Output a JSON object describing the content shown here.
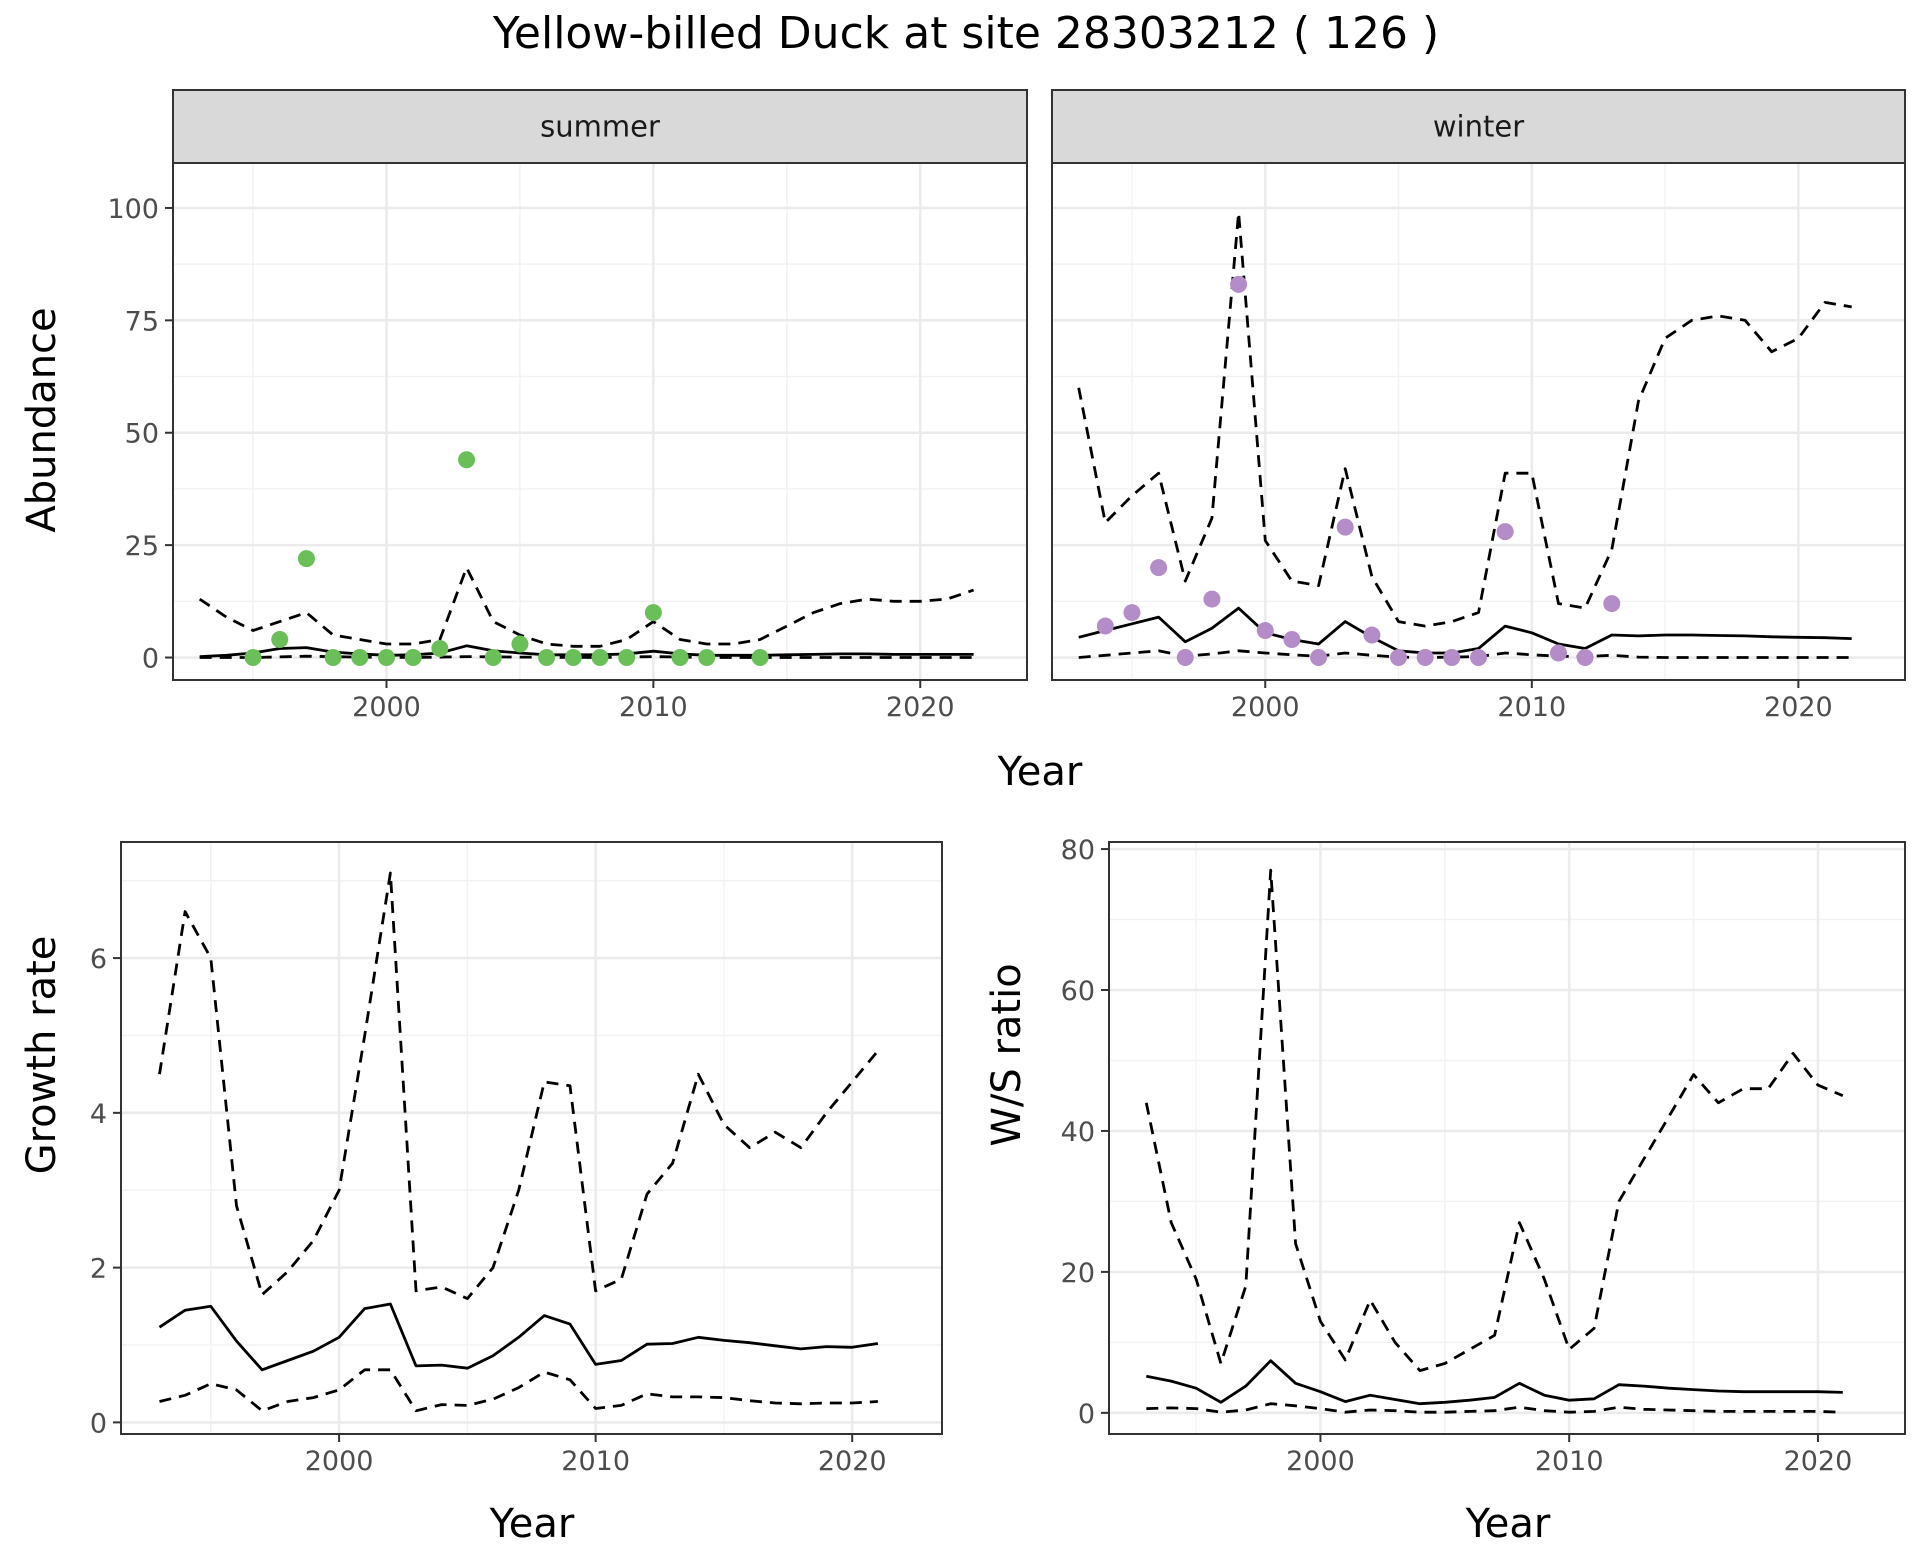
{
  "title": "Yellow-billed Duck at site 28303212 ( 126 )",
  "colors": {
    "summer_points": "#6bbf59",
    "winter_points": "#b48cc8",
    "line": "#000000",
    "strip_bg": "#d9d9d9",
    "grid_major": "#ebebeb",
    "grid_minor": "#f2f2f2"
  },
  "chart_data": [
    {
      "type": "line",
      "facet": "summer",
      "xlabel": "Year",
      "ylabel": "Abundance",
      "xlim": [
        1992,
        2024
      ],
      "ylim": [
        -5,
        110
      ],
      "xticks": [
        2000,
        2010,
        2020
      ],
      "yticks": [
        0,
        25,
        50,
        75,
        100
      ],
      "grid": true,
      "series": [
        {
          "style": "solid",
          "x": [
            1993,
            1994,
            1995,
            1996,
            1997,
            1998,
            1999,
            2000,
            2001,
            2002,
            2003,
            2004,
            2005,
            2006,
            2007,
            2008,
            2009,
            2010,
            2011,
            2012,
            2013,
            2014,
            2015,
            2016,
            2017,
            2018,
            2019,
            2020,
            2021,
            2022
          ],
          "y": [
            0.2,
            0.5,
            1.0,
            2.0,
            2.2,
            1.2,
            0.8,
            0.5,
            0.6,
            1.0,
            2.6,
            1.5,
            1.0,
            0.6,
            0.6,
            0.6,
            0.8,
            1.4,
            0.8,
            0.5,
            0.5,
            0.5,
            0.6,
            0.7,
            0.8,
            0.8,
            0.7,
            0.7,
            0.7,
            0.7
          ]
        },
        {
          "style": "dashed",
          "x": [
            1993,
            1994,
            1995,
            1996,
            1997,
            1998,
            1999,
            2000,
            2001,
            2002,
            2003,
            2004,
            2005,
            2006,
            2007,
            2008,
            2009,
            2010,
            2011,
            2012,
            2013,
            2014,
            2015,
            2016,
            2017,
            2018,
            2019,
            2020,
            2021,
            2022
          ],
          "y": [
            13,
            9,
            6,
            8,
            10,
            5,
            4,
            3,
            3,
            4,
            20,
            8,
            5,
            3,
            2.5,
            2.5,
            4,
            8,
            4,
            3,
            3,
            4,
            7,
            10,
            12,
            13,
            12.5,
            12.5,
            13,
            15
          ]
        },
        {
          "style": "dashed",
          "x": [
            1993,
            1995,
            1997,
            1999,
            2001,
            2003,
            2005,
            2008,
            2010,
            2012,
            2014,
            2017,
            2020,
            2022
          ],
          "y": [
            0,
            0,
            0.3,
            0.1,
            0,
            0.2,
            0.1,
            0,
            0.2,
            0,
            0,
            0,
            0,
            0
          ]
        }
      ],
      "points": {
        "x": [
          1995,
          1996,
          1997,
          1998,
          1999,
          2000,
          2001,
          2002,
          2003,
          2004,
          2005,
          2006,
          2007,
          2008,
          2009,
          2010,
          2011,
          2012,
          2014
        ],
        "y": [
          0,
          4,
          22,
          0,
          0,
          0,
          0,
          2,
          44,
          0,
          3,
          0,
          0,
          0,
          0,
          10,
          0,
          0,
          0
        ]
      }
    },
    {
      "type": "line",
      "facet": "winter",
      "xlabel": "Year",
      "ylabel": "Abundance",
      "xlim": [
        1992,
        2024
      ],
      "ylim": [
        -5,
        110
      ],
      "xticks": [
        2000,
        2010,
        2020
      ],
      "yticks": [
        0,
        25,
        50,
        75,
        100
      ],
      "grid": true,
      "series": [
        {
          "style": "solid",
          "x": [
            1993,
            1994,
            1995,
            1996,
            1997,
            1998,
            1999,
            2000,
            2001,
            2002,
            2003,
            2004,
            2005,
            2006,
            2007,
            2008,
            2009,
            2010,
            2011,
            2012,
            2013,
            2014,
            2015,
            2016,
            2017,
            2018,
            2019,
            2020,
            2021,
            2022
          ],
          "y": [
            4.5,
            6,
            7.5,
            9,
            3.5,
            6.5,
            11,
            5.5,
            4,
            3,
            8,
            4.5,
            1.5,
            1,
            1,
            2,
            7,
            5.5,
            3,
            2,
            5,
            4.8,
            5,
            5,
            4.9,
            4.8,
            4.6,
            4.5,
            4.4,
            4.2
          ]
        },
        {
          "style": "dashed",
          "x": [
            1993,
            1994,
            1995,
            1996,
            1997,
            1998,
            1999,
            2000,
            2001,
            2002,
            2003,
            2004,
            2005,
            2006,
            2007,
            2008,
            2009,
            2010,
            2011,
            2012,
            2013,
            2014,
            2015,
            2016,
            2017,
            2018,
            2019,
            2020,
            2021,
            2022
          ],
          "y": [
            60,
            30,
            36,
            41,
            17,
            31,
            99,
            26,
            17,
            16,
            42,
            18,
            8,
            7,
            8,
            10,
            41,
            41,
            12,
            11,
            24,
            57,
            71,
            75,
            76,
            75,
            68,
            71,
            79,
            78
          ]
        },
        {
          "style": "dashed",
          "x": [
            1993,
            1994,
            1995,
            1996,
            1997,
            1998,
            1999,
            2000,
            2001,
            2002,
            2003,
            2004,
            2005,
            2006,
            2007,
            2008,
            2009,
            2010,
            2011,
            2012,
            2013,
            2014,
            2015,
            2016,
            2017,
            2018,
            2019,
            2020,
            2021,
            2022
          ],
          "y": [
            0,
            0.5,
            1,
            1.5,
            0.3,
            0.8,
            1.5,
            1,
            0.6,
            0.3,
            1,
            0.5,
            0.1,
            0,
            0.1,
            0.2,
            1,
            0.6,
            0.3,
            0.2,
            0.5,
            0.1,
            0,
            0,
            0,
            0,
            0,
            0,
            0,
            0
          ]
        }
      ],
      "points": {
        "x": [
          1994,
          1995,
          1996,
          1997,
          1998,
          1999,
          2000,
          2001,
          2002,
          2003,
          2004,
          2005,
          2006,
          2007,
          2008,
          2009,
          2011,
          2012,
          2013
        ],
        "y": [
          7,
          10,
          20,
          0,
          13,
          83,
          6,
          4,
          0,
          29,
          5,
          0,
          0,
          0,
          0,
          28,
          1,
          0,
          12
        ]
      }
    },
    {
      "type": "line",
      "xlabel": "Year",
      "ylabel": "Growth rate",
      "xlim": [
        1991.5,
        2023.5
      ],
      "ylim": [
        -0.15,
        7.5
      ],
      "xticks": [
        2000,
        2010,
        2020
      ],
      "yticks": [
        0,
        2,
        4,
        6
      ],
      "grid": true,
      "series": [
        {
          "style": "solid",
          "x": [
            1993,
            1994,
            1995,
            1996,
            1997,
            1998,
            1999,
            2000,
            2001,
            2002,
            2003,
            2004,
            2005,
            2006,
            2007,
            2008,
            2009,
            2010,
            2011,
            2012,
            2013,
            2014,
            2015,
            2016,
            2017,
            2018,
            2019,
            2020,
            2021
          ],
          "y": [
            1.23,
            1.45,
            1.5,
            1.05,
            0.68,
            0.8,
            0.92,
            1.1,
            1.47,
            1.53,
            0.73,
            0.74,
            0.7,
            0.86,
            1.1,
            1.38,
            1.27,
            0.75,
            0.8,
            1.01,
            1.02,
            1.1,
            1.06,
            1.03,
            0.99,
            0.95,
            0.98,
            0.97,
            1.02
          ]
        },
        {
          "style": "dashed",
          "x": [
            1993,
            1994,
            1995,
            1996,
            1997,
            1998,
            1999,
            2000,
            2001,
            2002,
            2003,
            2004,
            2005,
            2006,
            2007,
            2008,
            2009,
            2010,
            2011,
            2012,
            2013,
            2014,
            2015,
            2016,
            2017,
            2018,
            2019,
            2020,
            2021
          ],
          "y": [
            4.5,
            6.6,
            6.0,
            2.8,
            1.65,
            1.95,
            2.35,
            3.0,
            5.0,
            7.1,
            1.7,
            1.75,
            1.6,
            2.0,
            3.0,
            4.4,
            4.35,
            1.7,
            1.85,
            2.95,
            3.35,
            4.5,
            3.85,
            3.55,
            3.75,
            3.55,
            4.0,
            4.4,
            4.8
          ]
        },
        {
          "style": "dashed",
          "x": [
            1993,
            1994,
            1995,
            1996,
            1997,
            1998,
            1999,
            2000,
            2001,
            2002,
            2003,
            2004,
            2005,
            2006,
            2007,
            2008,
            2009,
            2010,
            2011,
            2012,
            2013,
            2014,
            2015,
            2016,
            2017,
            2018,
            2019,
            2020,
            2021
          ],
          "y": [
            0.27,
            0.35,
            0.5,
            0.42,
            0.15,
            0.27,
            0.32,
            0.42,
            0.68,
            0.68,
            0.15,
            0.23,
            0.22,
            0.3,
            0.45,
            0.65,
            0.55,
            0.18,
            0.22,
            0.37,
            0.33,
            0.33,
            0.32,
            0.28,
            0.25,
            0.24,
            0.25,
            0.25,
            0.27
          ]
        }
      ]
    },
    {
      "type": "line",
      "xlabel": "Year",
      "ylabel": "W/S ratio",
      "xlim": [
        1991.5,
        2023.5
      ],
      "ylim": [
        -3,
        81
      ],
      "xticks": [
        2000,
        2010,
        2020
      ],
      "yticks": [
        0,
        20,
        40,
        60,
        80
      ],
      "grid": true,
      "series": [
        {
          "style": "solid",
          "x": [
            1993,
            1994,
            1995,
            1996,
            1997,
            1998,
            1999,
            2000,
            2001,
            2002,
            2003,
            2004,
            2005,
            2006,
            2007,
            2008,
            2009,
            2010,
            2011,
            2012,
            2013,
            2014,
            2015,
            2016,
            2017,
            2018,
            2019,
            2020,
            2021
          ],
          "y": [
            5.2,
            4.5,
            3.5,
            1.5,
            3.8,
            7.4,
            4.2,
            3.0,
            1.6,
            2.5,
            1.9,
            1.3,
            1.5,
            1.8,
            2.2,
            4.2,
            2.5,
            1.8,
            2.0,
            4.0,
            3.8,
            3.5,
            3.3,
            3.1,
            3.0,
            3.0,
            3.0,
            3.0,
            2.9
          ]
        },
        {
          "style": "dashed",
          "x": [
            1993,
            1994,
            1995,
            1996,
            1997,
            1998,
            1999,
            2000,
            2001,
            2002,
            2003,
            2004,
            2005,
            2006,
            2007,
            2008,
            2009,
            2010,
            2011,
            2012,
            2013,
            2014,
            2015,
            2016,
            2017,
            2018,
            2019,
            2020,
            2021
          ],
          "y": [
            44,
            27,
            19,
            7,
            18,
            77,
            24,
            13,
            7.5,
            16,
            10,
            6,
            7,
            9,
            11,
            27,
            19,
            9,
            12,
            30,
            36,
            42,
            48,
            44,
            46,
            46,
            51,
            46.5,
            45
          ]
        },
        {
          "style": "dashed",
          "x": [
            1993,
            1994,
            1995,
            1996,
            1997,
            1998,
            1999,
            2000,
            2001,
            2002,
            2003,
            2004,
            2005,
            2006,
            2007,
            2008,
            2009,
            2010,
            2011,
            2012,
            2013,
            2014,
            2015,
            2016,
            2017,
            2018,
            2019,
            2020,
            2021
          ],
          "y": [
            0.6,
            0.7,
            0.6,
            0.1,
            0.4,
            1.3,
            1.0,
            0.6,
            0.1,
            0.4,
            0.3,
            0.1,
            0.1,
            0.2,
            0.3,
            0.8,
            0.3,
            0.1,
            0.2,
            0.8,
            0.5,
            0.4,
            0.3,
            0.2,
            0.2,
            0.2,
            0.2,
            0.2,
            0.1
          ]
        }
      ]
    }
  ]
}
